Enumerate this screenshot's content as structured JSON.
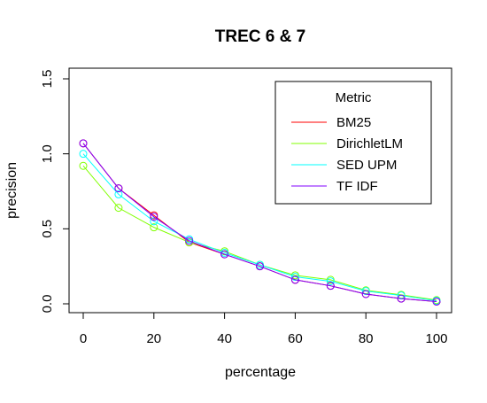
{
  "chart_data": {
    "type": "line",
    "title": "TREC 6 & 7",
    "xlabel": "percentage",
    "ylabel": "precision",
    "xlim": [
      0,
      100
    ],
    "ylim": [
      0,
      1.5
    ],
    "xticks": [
      0,
      20,
      40,
      60,
      80,
      100
    ],
    "xtick_labels": [
      "0",
      "20",
      "40",
      "60",
      "80",
      "100"
    ],
    "yticks": [
      0,
      0.5,
      1.0,
      1.5
    ],
    "ytick_labels": [
      "0.0",
      "0.5",
      "1.0",
      "1.5"
    ],
    "x": [
      0,
      10,
      20,
      30,
      40,
      50,
      60,
      70,
      80,
      90,
      100
    ],
    "series": [
      {
        "name": "BM25",
        "color": "#ff0000",
        "values": [
          1.07,
          0.77,
          0.59,
          0.41,
          0.33,
          0.25,
          0.16,
          0.12,
          0.065,
          0.035,
          0.015
        ]
      },
      {
        "name": "DirichletLM",
        "color": "#80ff00",
        "values": [
          0.92,
          0.64,
          0.51,
          0.41,
          0.35,
          0.26,
          0.19,
          0.16,
          0.09,
          0.06,
          0.025
        ]
      },
      {
        "name": "SED UPM",
        "color": "#00ffff",
        "values": [
          1.0,
          0.73,
          0.55,
          0.43,
          0.34,
          0.26,
          0.18,
          0.15,
          0.085,
          0.055,
          0.02
        ]
      },
      {
        "name": "TF IDF",
        "color": "#8000ff",
        "values": [
          1.07,
          0.77,
          0.58,
          0.42,
          0.33,
          0.25,
          0.16,
          0.12,
          0.065,
          0.035,
          0.015
        ]
      }
    ],
    "marker": "open-circle",
    "grid": false,
    "legend": {
      "title": "Metric",
      "placement": "top-right"
    }
  }
}
